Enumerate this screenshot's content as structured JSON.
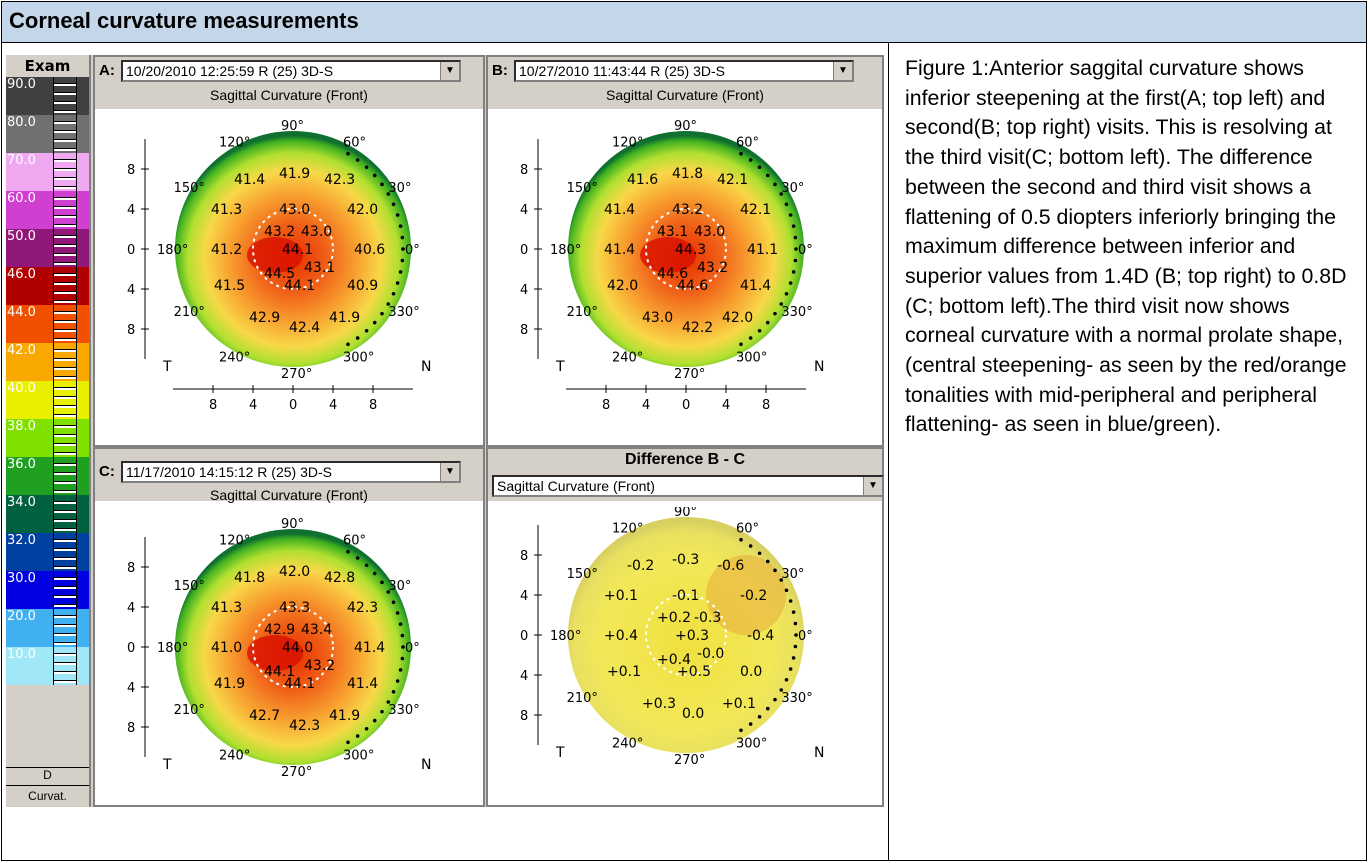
{
  "title": "Corneal curvature measurements",
  "caption": "Figure 1:Anterior saggital curvature shows inferior steepening at the first(A; top left) and second(B; top right) visits. This is resolving at the third visit(C; bottom left). The difference between the second and third visit shows a flattening of 0.5 diopters inferiorly bringing the maximum difference between inferior and superior values from 1.4D (B; top right) to 0.8D (C; bottom left).The third visit now shows corneal curvature with a normal prolate shape, (central steepening- as seen by the red/orange tonalities with mid-peripheral and peripheral flattening- as seen in blue/green).",
  "scale": {
    "title": "Exam",
    "levels": [
      {
        "label": "90.0",
        "color": "#404040"
      },
      {
        "label": "80.0",
        "color": "#707070"
      },
      {
        "label": "70.0",
        "color": "#f0a8f0"
      },
      {
        "label": "60.0",
        "color": "#d040d0"
      },
      {
        "label": "50.0",
        "color": "#901878"
      },
      {
        "label": "46.0",
        "color": "#b00000"
      },
      {
        "label": "44.0",
        "color": "#f05000"
      },
      {
        "label": "42.0",
        "color": "#f8a800"
      },
      {
        "label": "40.0",
        "color": "#e8f000"
      },
      {
        "label": "38.0",
        "color": "#80e000"
      },
      {
        "label": "36.0",
        "color": "#20a020"
      },
      {
        "label": "34.0",
        "color": "#006040"
      },
      {
        "label": "32.0",
        "color": "#0040a0"
      },
      {
        "label": "30.0",
        "color": "#0000e0"
      },
      {
        "label": "20.0",
        "color": "#40b0f0"
      },
      {
        "label": "10.0",
        "color": "#a0e8f8"
      }
    ],
    "unit": "D",
    "footer": "Curvat."
  },
  "panels": {
    "A": {
      "label": "A:",
      "exam": "10/20/2010 12:25:59 R (25) 3D-S",
      "subtitle": "Sagittal Curvature (Front)",
      "values": [
        "41.4",
        "41.9",
        "42.3",
        "41.3",
        "43.0",
        "42.0",
        "43.2",
        "43.0",
        "41.2",
        "44.1",
        "40.6",
        "44.5",
        "43.1",
        "41.5",
        "44.1",
        "40.9",
        "42.9",
        "42.4",
        "41.9"
      ]
    },
    "B": {
      "label": "B:",
      "exam": "10/27/2010 11:43:44 R (25) 3D-S",
      "subtitle": "Sagittal Curvature (Front)",
      "values": [
        "41.6",
        "41.8",
        "42.1",
        "41.4",
        "43.2",
        "42.1",
        "43.1",
        "43.0",
        "41.4",
        "44.3",
        "41.1",
        "44.6",
        "43.2",
        "42.0",
        "44.6",
        "41.4",
        "43.0",
        "42.2",
        "42.0"
      ]
    },
    "C": {
      "label": "C:",
      "exam": "11/17/2010 14:15:12 R (25) 3D-S",
      "subtitle": "Sagittal Curvature (Front)",
      "values": [
        "41.8",
        "42.0",
        "42.8",
        "41.3",
        "43.3",
        "42.3",
        "42.9",
        "43.4",
        "41.0",
        "44.0",
        "41.4",
        "44.1",
        "43.2",
        "41.9",
        "44.1",
        "41.4",
        "42.7",
        "42.3",
        "41.9"
      ]
    },
    "D": {
      "title": "Difference B - C",
      "subtitle": "Sagittal Curvature (Front)",
      "values": [
        "-0.2",
        "-0.3",
        "-0.6",
        "+0.1",
        "-0.1",
        "-0.2",
        "+0.2",
        "-0.3",
        "+0.4",
        "+0.3",
        "-0.4",
        "+0.4",
        "-0.0",
        "+0.1",
        "+0.5",
        "0.0",
        "+0.3",
        "0.0",
        "+0.1"
      ]
    }
  },
  "map_labels": {
    "angles": [
      "90°",
      "60°",
      "30°",
      "0°",
      "330°",
      "300°",
      "270°",
      "240°",
      "210°",
      "180°",
      "150°",
      "120°"
    ],
    "temporal": "T",
    "nasal": "N",
    "y_ticks": [
      "8",
      "4",
      "0",
      "4",
      "8"
    ],
    "x_ticks": [
      "8",
      "4",
      "0",
      "4",
      "8"
    ]
  }
}
